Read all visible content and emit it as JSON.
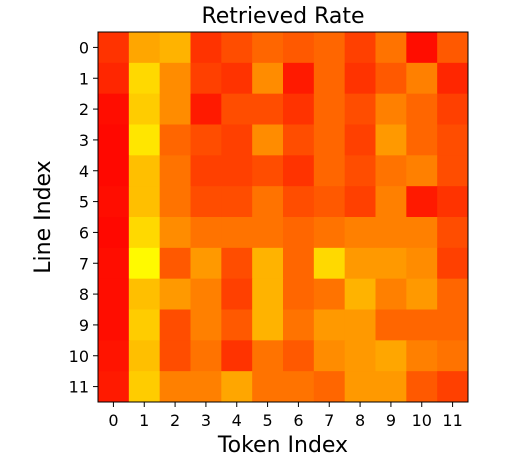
{
  "chart_data": {
    "type": "heatmap",
    "title": "Retrieved Rate",
    "xlabel": "Token Index",
    "ylabel": "Line Index",
    "x_categories": [
      "0",
      "1",
      "2",
      "3",
      "4",
      "5",
      "6",
      "7",
      "8",
      "9",
      "10",
      "11"
    ],
    "y_categories": [
      "0",
      "1",
      "2",
      "3",
      "4",
      "5",
      "6",
      "7",
      "8",
      "9",
      "10",
      "11"
    ],
    "colormap": "autumn",
    "value_range": [
      0,
      1
    ],
    "values": [
      [
        0.2,
        0.65,
        0.7,
        0.2,
        0.3,
        0.4,
        0.35,
        0.4,
        0.25,
        0.45,
        0.05,
        0.35
      ],
      [
        0.15,
        0.85,
        0.55,
        0.25,
        0.2,
        0.55,
        0.1,
        0.4,
        0.2,
        0.35,
        0.5,
        0.15
      ],
      [
        0.05,
        0.8,
        0.55,
        0.1,
        0.3,
        0.3,
        0.2,
        0.4,
        0.3,
        0.5,
        0.4,
        0.25
      ],
      [
        0.03,
        0.9,
        0.4,
        0.3,
        0.25,
        0.55,
        0.3,
        0.4,
        0.25,
        0.6,
        0.4,
        0.3
      ],
      [
        0.03,
        0.75,
        0.45,
        0.25,
        0.25,
        0.3,
        0.2,
        0.4,
        0.3,
        0.45,
        0.5,
        0.3
      ],
      [
        0.05,
        0.75,
        0.45,
        0.3,
        0.3,
        0.45,
        0.3,
        0.35,
        0.25,
        0.5,
        0.1,
        0.2
      ],
      [
        0.03,
        0.85,
        0.55,
        0.45,
        0.45,
        0.45,
        0.4,
        0.45,
        0.5,
        0.5,
        0.5,
        0.3
      ],
      [
        0.05,
        0.98,
        0.35,
        0.6,
        0.3,
        0.7,
        0.4,
        0.85,
        0.6,
        0.6,
        0.55,
        0.25
      ],
      [
        0.05,
        0.75,
        0.6,
        0.5,
        0.25,
        0.7,
        0.4,
        0.45,
        0.7,
        0.5,
        0.6,
        0.4
      ],
      [
        0.05,
        0.8,
        0.3,
        0.5,
        0.35,
        0.7,
        0.45,
        0.6,
        0.6,
        0.4,
        0.4,
        0.4
      ],
      [
        0.08,
        0.75,
        0.3,
        0.45,
        0.2,
        0.45,
        0.35,
        0.55,
        0.6,
        0.65,
        0.5,
        0.45
      ],
      [
        0.1,
        0.8,
        0.5,
        0.5,
        0.65,
        0.45,
        0.45,
        0.4,
        0.6,
        0.6,
        0.35,
        0.25
      ]
    ]
  }
}
